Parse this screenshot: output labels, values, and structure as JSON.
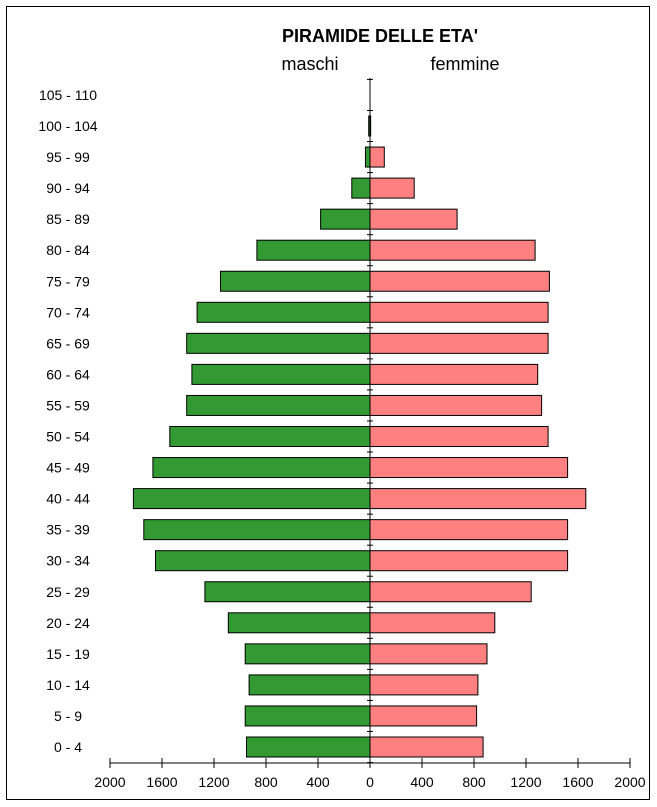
{
  "chart_data": {
    "type": "bar",
    "orientation": "horizontal",
    "title": "PIRAMIDE DELLE ETA'",
    "left_label": "maschi",
    "right_label": "femmine",
    "categories": [
      "0 - 4",
      "5 - 9",
      "10 - 14",
      "15 - 19",
      "20 - 24",
      "25 - 29",
      "30 - 34",
      "35 - 39",
      "40 - 44",
      "45 - 49",
      "50 - 54",
      "55 - 59",
      "60 - 64",
      "65 - 69",
      "70 - 74",
      "75 - 79",
      "80 - 84",
      "85 - 89",
      "90 - 94",
      "95 - 99",
      "100 - 104",
      "105 - 110"
    ],
    "series": [
      {
        "name": "maschi",
        "color": "#339933",
        "values": [
          950,
          960,
          930,
          960,
          1090,
          1270,
          1650,
          1740,
          1820,
          1670,
          1540,
          1410,
          1370,
          1410,
          1330,
          1150,
          870,
          380,
          140,
          35,
          10,
          0
        ]
      },
      {
        "name": "femmine",
        "color": "#FF8080",
        "values": [
          870,
          820,
          830,
          900,
          960,
          1240,
          1520,
          1520,
          1660,
          1520,
          1370,
          1320,
          1290,
          1370,
          1370,
          1380,
          1270,
          670,
          340,
          110,
          5,
          0
        ]
      }
    ],
    "x_ticks": [
      "2000",
      "1600",
      "1200",
      "800",
      "400",
      "0",
      "400",
      "800",
      "1200",
      "1600",
      "2000"
    ],
    "xlim": [
      -2000,
      2000
    ],
    "grid": false,
    "legend": "none"
  }
}
